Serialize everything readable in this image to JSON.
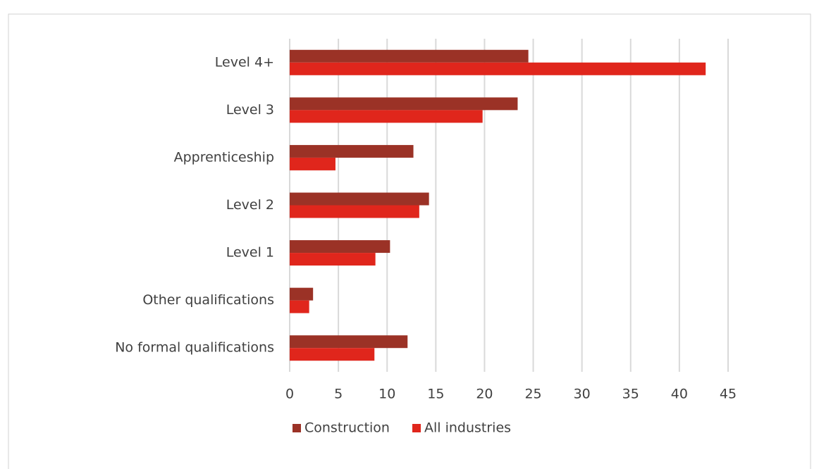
{
  "chart_data": {
    "type": "barh",
    "categories": [
      "Level 4+",
      "Level 3",
      "Apprenticeship",
      "Level 2",
      "Level 1",
      "Other qualifications",
      "No formal qualifications"
    ],
    "series": [
      {
        "name": "Construction",
        "color": "#9b3226",
        "values": [
          24.5,
          23.4,
          12.7,
          14.3,
          10.3,
          2.4,
          12.1
        ]
      },
      {
        "name": "All industries",
        "color": "#e0261c",
        "values": [
          42.7,
          19.8,
          4.7,
          13.3,
          8.8,
          2.0,
          8.7
        ]
      }
    ],
    "xlim": [
      0,
      45
    ],
    "xticks": [
      0,
      5,
      10,
      15,
      20,
      25,
      30,
      35,
      40,
      45
    ],
    "grid": true,
    "legend": "bottom"
  }
}
